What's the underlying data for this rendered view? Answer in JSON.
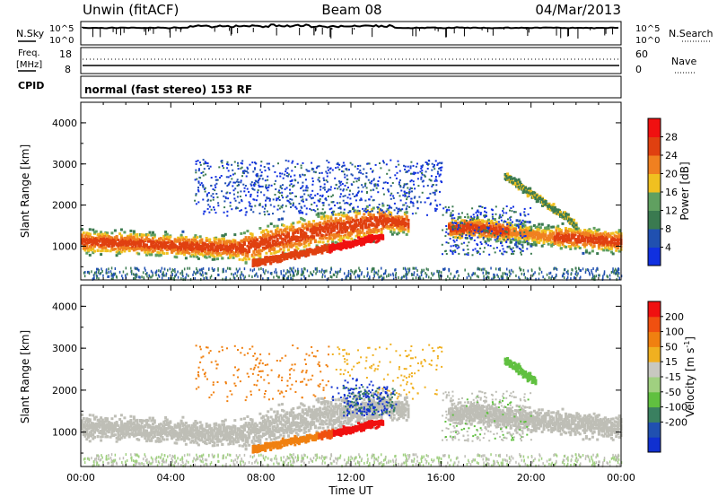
{
  "header": {
    "station": "Unwin (fitACF)",
    "beam": "Beam 08",
    "date": "04/Mar/2013"
  },
  "noise_panel": {
    "left_label": "N.Sky",
    "right_label": "N.Search",
    "left_ticks": [
      "10^5",
      "10^0"
    ],
    "right_ticks": [
      "10^5",
      "10^0"
    ]
  },
  "freq_panel": {
    "left_label_1": "Freq.",
    "left_label_2": "[MHz]",
    "right_label": "Nave",
    "left_ticks": [
      "18",
      "8"
    ],
    "right_ticks": [
      "60",
      "0"
    ]
  },
  "cpid_panel": {
    "label": "CPID",
    "text": "normal (fast stereo) 153 RF"
  },
  "colors": {
    "power_scale": [
      "#1030e0",
      "#2050b0",
      "#3a7a50",
      "#60a060",
      "#f0c020",
      "#f08020",
      "#e04010",
      "#f01010"
    ],
    "velocity_scale": [
      "#f01010",
      "#f05010",
      "#f08010",
      "#f0b020",
      "#c8c8c0",
      "#a0d080",
      "#60c040",
      "#3a8060",
      "#2050b0",
      "#1030d0"
    ],
    "ground_scatter": "#bebeb6"
  },
  "chart_data": [
    {
      "type": "heatmap",
      "name": "power",
      "ylabel": "Slant Range [km]",
      "xlabel": "",
      "ylim": [
        180,
        4500
      ],
      "xlim_hours": [
        0,
        24
      ],
      "y_ticks": [
        "1000",
        "2000",
        "3000",
        "4000"
      ],
      "x_ticks": [
        "00:00",
        "04:00",
        "08:00",
        "12:00",
        "16:00",
        "20:00",
        "00:00"
      ],
      "colorbar_label": "Power [dB]",
      "colorbar_ticks": [
        "4",
        "8",
        "12",
        "16",
        "20",
        "24",
        "28"
      ],
      "colorbar_range": [
        0,
        32
      ]
    },
    {
      "type": "heatmap",
      "name": "velocity",
      "ylabel": "Slant Range [km]",
      "xlabel": "Time UT",
      "ylim": [
        180,
        4500
      ],
      "xlim_hours": [
        0,
        24
      ],
      "y_ticks": [
        "1000",
        "2000",
        "3000",
        "4000"
      ],
      "x_ticks": [
        "00:00",
        "04:00",
        "08:00",
        "12:00",
        "16:00",
        "20:00",
        "00:00"
      ],
      "colorbar_label_main": "Velocity [m s",
      "colorbar_label_sup": "-1",
      "colorbar_label_end": "]",
      "colorbar_ticks": [
        "200",
        "100",
        "50",
        "15",
        "-15",
        "-50",
        "-100",
        "-200"
      ]
    }
  ]
}
